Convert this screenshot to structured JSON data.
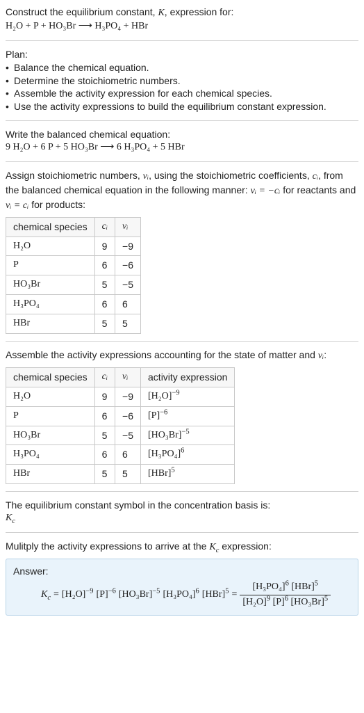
{
  "colors": {
    "text": "#222222",
    "rule": "#d0d0d0",
    "table_border": "#c8c8c8",
    "table_header_bg": "#f7f7f7",
    "answer_bg": "#e9f3fb",
    "answer_border": "#b8d4e8"
  },
  "fonts": {
    "body_family": "Segoe UI, Arial, sans-serif",
    "math_family": "Cambria Math, Times New Roman, serif",
    "body_size_pt": 10.5
  },
  "intro": {
    "line1_prefix": "Construct the equilibrium constant, ",
    "K": "K",
    "line1_suffix": ", expression for:",
    "equation": "H₂O + P + HO₃Br ⟶ H₃PO₄ + HBr"
  },
  "plan": {
    "heading": "Plan:",
    "bullet": "•",
    "items": [
      "Balance the chemical equation.",
      "Determine the stoichiometric numbers.",
      "Assemble the activity expression for each chemical species.",
      "Use the activity expressions to build the equilibrium constant expression."
    ]
  },
  "balanced": {
    "heading": "Write the balanced chemical equation:",
    "equation": "9 H₂O + 6 P + 5 HO₃Br ⟶ 6 H₃PO₄ + 5 HBr"
  },
  "stoich": {
    "text_a": "Assign stoichiometric numbers, ",
    "nu_i": "νᵢ",
    "text_b": ", using the stoichiometric coefficients, ",
    "c_i": "cᵢ",
    "text_c": ", from the balanced chemical equation in the following manner: ",
    "rel_react": "νᵢ = −cᵢ",
    "text_d": " for reactants and ",
    "rel_prod": "νᵢ = cᵢ",
    "text_e": " for products:"
  },
  "table1": {
    "headers": {
      "species": "chemical species",
      "ci": "cᵢ",
      "nui": "νᵢ"
    },
    "rows": [
      {
        "species": "H₂O",
        "ci": "9",
        "nui": "−9"
      },
      {
        "species": "P",
        "ci": "6",
        "nui": "−6"
      },
      {
        "species": "HO₃Br",
        "ci": "5",
        "nui": "−5"
      },
      {
        "species": "H₃PO₄",
        "ci": "6",
        "nui": "6"
      },
      {
        "species": "HBr",
        "ci": "5",
        "nui": "5"
      }
    ]
  },
  "activity": {
    "text_a": "Assemble the activity expressions accounting for the state of matter and ",
    "nu_i": "νᵢ",
    "text_b": ":"
  },
  "table2": {
    "headers": {
      "species": "chemical species",
      "ci": "cᵢ",
      "nui": "νᵢ",
      "act": "activity expression"
    },
    "rows": [
      {
        "species": "H₂O",
        "ci": "9",
        "nui": "−9",
        "base": "[H₂O]",
        "exp": "−9"
      },
      {
        "species": "P",
        "ci": "6",
        "nui": "−6",
        "base": "[P]",
        "exp": "−6"
      },
      {
        "species": "HO₃Br",
        "ci": "5",
        "nui": "−5",
        "base": "[HO₃Br]",
        "exp": "−5"
      },
      {
        "species": "H₃PO₄",
        "ci": "6",
        "nui": "6",
        "base": "[H₃PO₄]",
        "exp": "6"
      },
      {
        "species": "HBr",
        "ci": "5",
        "nui": "5",
        "base": "[HBr]",
        "exp": "5"
      }
    ]
  },
  "kc_symbol": {
    "line1": "The equilibrium constant symbol in the concentration basis is:",
    "Kc": "K_c",
    "Kc_display_base": "K",
    "Kc_display_sub": "c"
  },
  "multiply": {
    "text_a": "Mulitply the activity expressions to arrive at the ",
    "Kc_base": "K",
    "Kc_sub": "c",
    "text_b": " expression:"
  },
  "answer": {
    "label": "Answer:",
    "Kc_base": "K",
    "Kc_sub": "c",
    "eq": " = ",
    "terms": [
      {
        "base": "[H₂O]",
        "exp": "−9"
      },
      {
        "base": "[P]",
        "exp": "−6"
      },
      {
        "base": "[HO₃Br]",
        "exp": "−5"
      },
      {
        "base": "[H₃PO₄]",
        "exp": "6"
      },
      {
        "base": "[HBr]",
        "exp": "5"
      }
    ],
    "numerator": [
      {
        "base": "[H₃PO₄]",
        "exp": "6"
      },
      {
        "base": "[HBr]",
        "exp": "5"
      }
    ],
    "denominator": [
      {
        "base": "[H₂O]",
        "exp": "9"
      },
      {
        "base": "[P]",
        "exp": "6"
      },
      {
        "base": "[HO₃Br]",
        "exp": "5"
      }
    ]
  }
}
